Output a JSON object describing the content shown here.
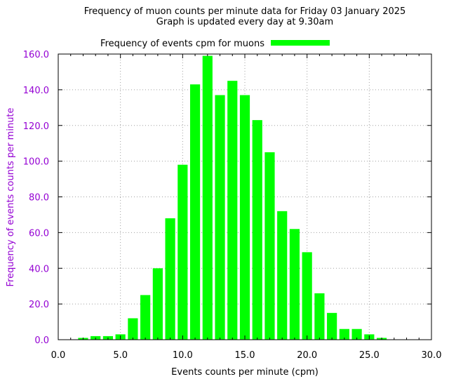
{
  "chart_data": {
    "type": "bar",
    "title": "Frequency of muon counts per minute data for Friday 03 January 2025",
    "subtitle": "Graph is updated every day at 9.30am",
    "xlabel": "Events counts per minute (cpm)",
    "ylabel": "Frequency of events counts per minute",
    "xlim": [
      0,
      30
    ],
    "ylim": [
      0,
      160
    ],
    "xticks": [
      "0.0",
      "5.0",
      "10.0",
      "15.0",
      "20.0",
      "25.0",
      "30.0"
    ],
    "yticks": [
      "0.0",
      "20.0",
      "40.0",
      "60.0",
      "80.0",
      "100.0",
      "120.0",
      "140.0",
      "160.0"
    ],
    "grid": true,
    "legend_position": "top-center",
    "series": [
      {
        "name": "Frequency of events cpm for muons",
        "color": "#00ff00",
        "x": [
          2,
          3,
          4,
          5,
          6,
          7,
          8,
          9,
          10,
          11,
          12,
          13,
          14,
          15,
          16,
          17,
          18,
          19,
          20,
          21,
          22,
          23,
          24,
          25,
          26
        ],
        "values": [
          1,
          2,
          2,
          3,
          12,
          25,
          40,
          68,
          98,
          143,
          159,
          137,
          145,
          137,
          123,
          105,
          72,
          62,
          49,
          26,
          15,
          6,
          6,
          3,
          1
        ]
      }
    ],
    "colors": {
      "ytick_label": "#9400d3",
      "ylabel": "#9400d3",
      "xlabel": "#000000"
    }
  }
}
